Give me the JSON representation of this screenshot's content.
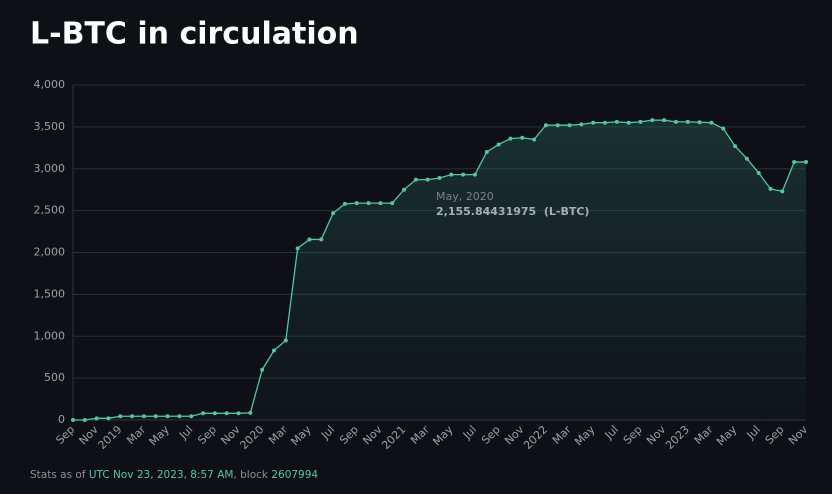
{
  "chart_data": {
    "type": "line",
    "title": "L-BTC in circulation",
    "categories": [
      "Sep",
      null,
      "Nov",
      null,
      "2019",
      null,
      "Mar",
      null,
      "May",
      null,
      "Jul",
      null,
      "Sep",
      null,
      "Nov",
      null,
      "2020",
      null,
      "Mar",
      null,
      "May",
      null,
      "Jul",
      null,
      "Sep",
      null,
      "Nov",
      null,
      "2021",
      null,
      "Mar",
      null,
      "May",
      null,
      "Jul",
      null,
      "Sep",
      null,
      "Nov",
      null,
      "2022",
      null,
      "Mar",
      null,
      "May",
      null,
      "Jul",
      null,
      "Sep",
      null,
      "Nov",
      null,
      "2023",
      null,
      "Mar",
      null,
      "May",
      null,
      "Jul",
      null,
      "Sep",
      null,
      "Nov"
    ],
    "series": [
      {
        "name": "L-BTC",
        "color": "#4fc7a4",
        "values": [
          0,
          0,
          20,
          20,
          45,
          45,
          45,
          45,
          45,
          45,
          45,
          80,
          80,
          80,
          80,
          85,
          600,
          830,
          950,
          2050,
          2155.84431975,
          2156,
          2470,
          2580,
          2590,
          2590,
          2590,
          2590,
          2750,
          2870,
          2870,
          2890,
          2930,
          2930,
          2930,
          3200,
          3290,
          3360,
          3370,
          3350,
          3520,
          3520,
          3520,
          3530,
          3550,
          3550,
          3560,
          3550,
          3560,
          3580,
          3580,
          3560,
          3560,
          3555,
          3550,
          3480,
          3270,
          3120,
          2950,
          2760,
          2730,
          3080,
          3080
        ]
      }
    ],
    "ylim": [
      0,
      4000
    ],
    "yticks": [
      0,
      500,
      {
        "value": 1000,
        "label": "1,000"
      },
      {
        "value": 1500,
        "label": "1,500"
      },
      {
        "value": 2000,
        "label": "2,000"
      },
      {
        "value": 2500,
        "label": "2,500"
      },
      {
        "value": 3000,
        "label": "3,000"
      },
      {
        "value": 3500,
        "label": "3,500"
      },
      {
        "value": 4000,
        "label": "4,000"
      }
    ],
    "grid": true,
    "tooltip": {
      "date": "May, 2020",
      "text": "2,155.84431975  (L-BTC)"
    },
    "footer": {
      "prefix": "Stats as of",
      "time": "UTC Nov 23, 2023, 8:57 AM",
      "middle": ", block",
      "block": "2607994"
    }
  }
}
